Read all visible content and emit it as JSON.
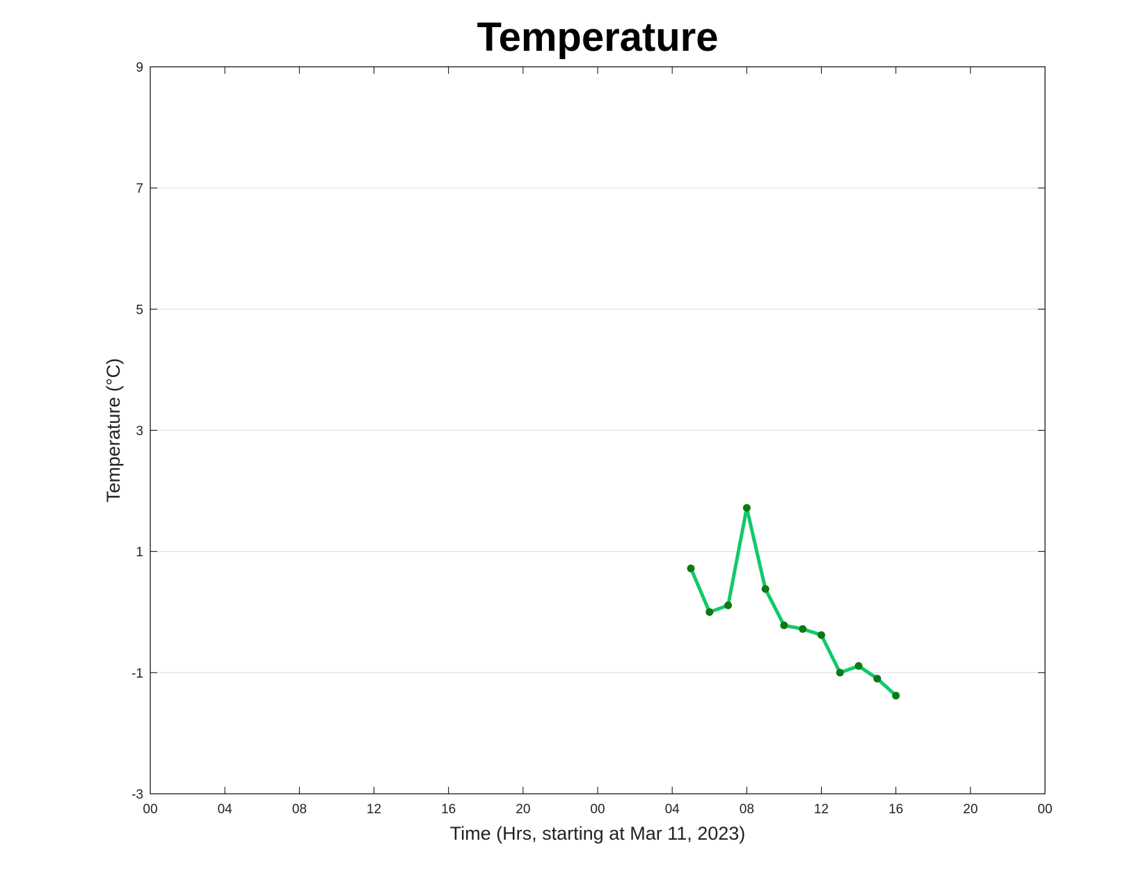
{
  "chart_data": {
    "type": "line",
    "title": "Temperature",
    "xlabel": "Time (Hrs, starting at Mar 11, 2023)",
    "ylabel": "Temperature (°C)",
    "x_unit": "datetime",
    "xlim": [
      "2023-03-11T00:00",
      "2023-03-13T00:00"
    ],
    "ylim": [
      -3,
      9
    ],
    "x_tick_values": [
      "2023-03-11T00:00",
      "2023-03-11T04:00",
      "2023-03-11T08:00",
      "2023-03-11T12:00",
      "2023-03-11T16:00",
      "2023-03-11T20:00",
      "2023-03-12T00:00",
      "2023-03-12T04:00",
      "2023-03-12T08:00",
      "2023-03-12T12:00",
      "2023-03-12T16:00",
      "2023-03-12T20:00",
      "2023-03-13T00:00"
    ],
    "x_tick_labels": [
      "00",
      "04",
      "08",
      "12",
      "16",
      "20",
      "00",
      "04",
      "08",
      "12",
      "16",
      "20",
      "00"
    ],
    "y_ticks": [
      -3,
      -1,
      1,
      3,
      5,
      7,
      9
    ],
    "y_tick_labels": [
      "-3",
      "-1",
      "1",
      "3",
      "5",
      "7",
      "9"
    ],
    "grid": {
      "horizontal": true,
      "vertical": false
    },
    "series": [
      {
        "line_color": "#11c96a",
        "marker_color": "#0a7a14",
        "x": [
          "2023-03-12T05:00",
          "2023-03-12T06:00",
          "2023-03-12T07:00",
          "2023-03-12T08:00",
          "2023-03-12T09:00",
          "2023-03-12T10:00",
          "2023-03-12T11:00",
          "2023-03-12T12:00",
          "2023-03-12T13:00",
          "2023-03-12T14:00",
          "2023-03-12T15:00",
          "2023-03-12T16:00"
        ],
        "y": [
          0.72,
          0.0,
          0.11,
          1.72,
          0.38,
          -0.22,
          -0.28,
          -0.38,
          -1.0,
          -0.89,
          -1.1,
          -1.38
        ]
      }
    ]
  }
}
